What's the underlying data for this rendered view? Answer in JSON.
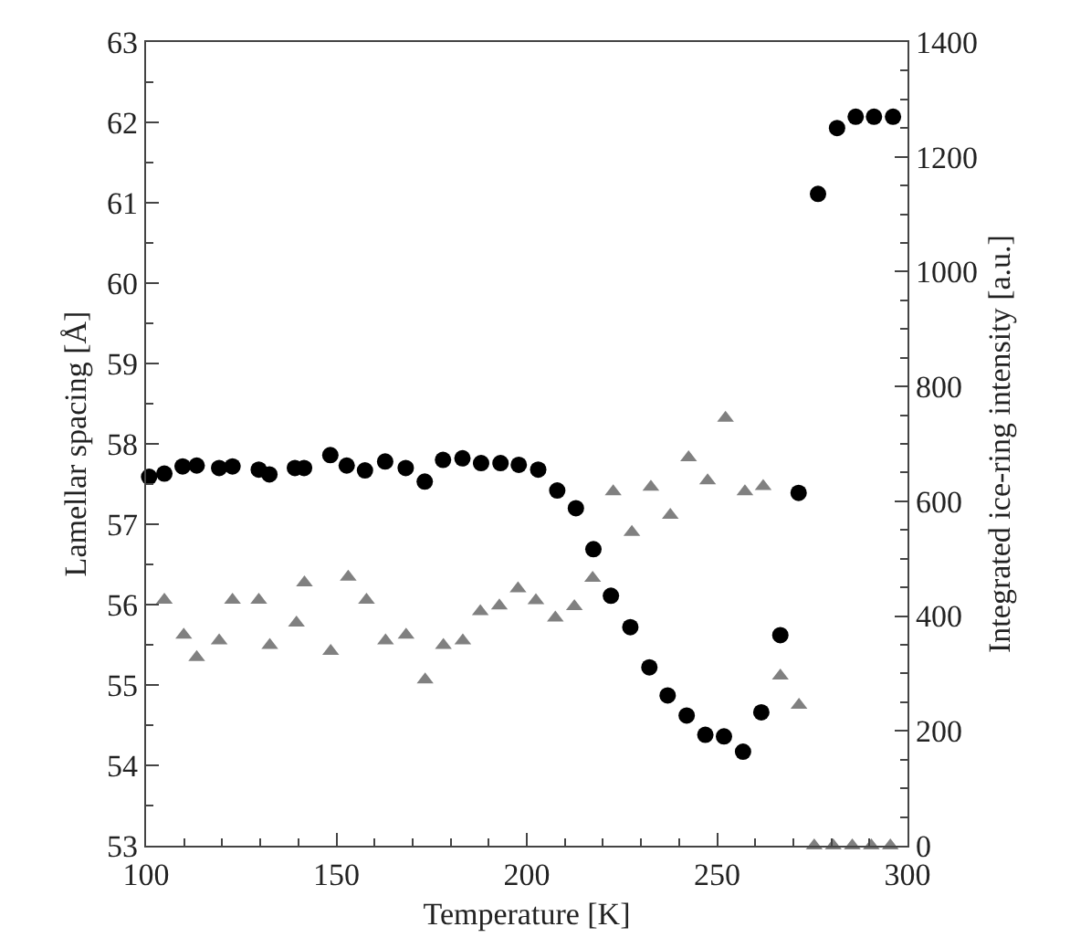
{
  "chart_data": {
    "type": "scatter",
    "xlabel": "Temperature [K]",
    "ylabel": "Lamellar spacing [Å]",
    "y2label": "Integrated ice-ring intensity [a.u.]",
    "xlim": [
      100,
      300
    ],
    "xticks": [
      100,
      150,
      200,
      250,
      300
    ],
    "ylim": [
      53,
      63
    ],
    "yticks": [
      53,
      54,
      55,
      56,
      57,
      58,
      59,
      60,
      61,
      62,
      63
    ],
    "y2lim": [
      0,
      1400
    ],
    "y2ticks": [
      0,
      200,
      400,
      600,
      800,
      1000,
      1200,
      1400
    ],
    "series": [
      {
        "color": "#000000",
        "marker": "circle",
        "axis": "y",
        "x": [
          100.8,
          104.8,
          109.6,
          113.3,
          119.2,
          122.7,
          129.6,
          132.4,
          139.1,
          141.5,
          148.4,
          152.7,
          157.5,
          162.8,
          168.2,
          173.2,
          178.0,
          183.1,
          188.0,
          193.1,
          197.9,
          203.0,
          208.0,
          212.9,
          217.5,
          222.1,
          227.2,
          232.2,
          237.0,
          242.0,
          246.9,
          251.8,
          256.8,
          261.6,
          266.6,
          271.4,
          276.5,
          281.5,
          286.4,
          291.2,
          296.2
        ],
        "values": [
          57.59,
          57.63,
          57.72,
          57.73,
          57.7,
          57.72,
          57.68,
          57.62,
          57.7,
          57.7,
          57.86,
          57.73,
          57.67,
          57.78,
          57.7,
          57.53,
          57.8,
          57.82,
          57.76,
          57.76,
          57.74,
          57.68,
          57.42,
          57.2,
          56.69,
          56.11,
          55.72,
          55.22,
          54.87,
          54.62,
          54.38,
          54.36,
          54.17,
          54.66,
          55.62,
          57.39,
          61.11,
          61.93,
          62.07,
          62.07,
          62.07
        ]
      },
      {
        "color": "#808080",
        "marker": "triangle",
        "axis": "y2",
        "x": [
          104.8,
          109.9,
          113.3,
          119.2,
          122.7,
          129.6,
          132.5,
          139.5,
          141.6,
          148.5,
          153.1,
          157.9,
          162.9,
          168.3,
          173.3,
          178.1,
          183.2,
          187.8,
          192.8,
          197.7,
          202.4,
          207.5,
          212.5,
          217.3,
          222.7,
          227.6,
          232.6,
          237.7,
          242.5,
          247.5,
          252.2,
          257.3,
          262.1,
          266.6,
          271.5,
          275.5,
          280.5,
          285.5,
          290.5,
          295.5
        ],
        "values": [
          428,
          367,
          328,
          357,
          428,
          428,
          349,
          388,
          458,
          339,
          468,
          428,
          357,
          367,
          289,
          349,
          357,
          408,
          418,
          448,
          427,
          397,
          417,
          466,
          617,
          546,
          625,
          576,
          676,
          636,
          745,
          617,
          626,
          296,
          245,
          0,
          0,
          0,
          0,
          0
        ]
      }
    ]
  }
}
